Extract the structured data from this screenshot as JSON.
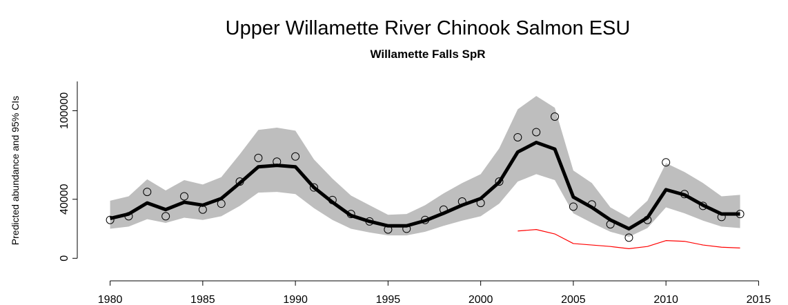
{
  "chart_data": {
    "type": "line",
    "title": "Upper Willamette River Chinook Salmon ESU",
    "subtitle": "Willamette Falls SpR",
    "y_label": "Predicted abundance and 95% CIs",
    "x": [
      1980,
      1981,
      1982,
      1983,
      1984,
      1985,
      1986,
      1987,
      1988,
      1989,
      1990,
      1991,
      1992,
      1993,
      1994,
      1995,
      1996,
      1997,
      1998,
      1999,
      2000,
      2001,
      2002,
      2003,
      2004,
      2005,
      2006,
      2007,
      2008,
      2009,
      2010,
      2011,
      2012,
      2013,
      2014
    ],
    "band": {
      "color": "#bebebe",
      "upper": [
        39000,
        42000,
        53500,
        46000,
        53000,
        50000,
        55000,
        70500,
        87000,
        88500,
        86500,
        67000,
        54000,
        42500,
        36000,
        29500,
        30000,
        36000,
        44000,
        51000,
        57000,
        74500,
        101000,
        110000,
        102000,
        59500,
        51000,
        34500,
        27500,
        39000,
        64500,
        58500,
        51000,
        42000,
        43000
      ],
      "lower": [
        20000,
        21500,
        26500,
        24000,
        27500,
        26000,
        28500,
        35500,
        44500,
        45000,
        43500,
        34000,
        26000,
        20000,
        17500,
        15500,
        15500,
        18000,
        22000,
        25500,
        28500,
        37000,
        52000,
        57000,
        53000,
        30500,
        24000,
        18000,
        14500,
        20500,
        34500,
        30500,
        25500,
        21500,
        20500
      ]
    },
    "series": [
      {
        "color": "#000000",
        "style": "line",
        "values": [
          27000,
          30000,
          37500,
          33000,
          38000,
          36000,
          40500,
          51000,
          62000,
          63000,
          62000,
          48000,
          38000,
          29000,
          25000,
          22000,
          22000,
          25500,
          30500,
          36000,
          40500,
          51500,
          72000,
          78500,
          74000,
          41500,
          34500,
          26000,
          20000,
          27500,
          46500,
          43000,
          36000,
          30000,
          30000
        ]
      },
      {
        "color": "#000000",
        "style": "points",
        "values": [
          26000,
          28500,
          45000,
          28500,
          42000,
          33000,
          37000,
          52000,
          68000,
          65500,
          69000,
          48000,
          39500,
          30000,
          25000,
          19500,
          20000,
          26000,
          33000,
          38500,
          37500,
          52000,
          82000,
          85500,
          96000,
          35000,
          36500,
          23000,
          14000,
          26000,
          65000,
          43500,
          35500,
          28000,
          30000
        ]
      },
      {
        "color": "#ff0000",
        "style": "thin-line",
        "values": [
          null,
          null,
          null,
          null,
          null,
          null,
          null,
          null,
          null,
          null,
          null,
          null,
          null,
          null,
          null,
          null,
          null,
          null,
          null,
          null,
          null,
          null,
          18500,
          19500,
          16500,
          10000,
          9000,
          8000,
          6500,
          8000,
          12000,
          11500,
          9000,
          7500,
          7000
        ]
      }
    ],
    "xlim": [
      1978.6,
      2016.4
    ],
    "xticks": [
      1980,
      1985,
      1990,
      1995,
      2000,
      2005,
      2010,
      2015
    ],
    "ylim": [
      -5000,
      125000
    ],
    "yticks": [
      0,
      40000,
      100000
    ]
  }
}
